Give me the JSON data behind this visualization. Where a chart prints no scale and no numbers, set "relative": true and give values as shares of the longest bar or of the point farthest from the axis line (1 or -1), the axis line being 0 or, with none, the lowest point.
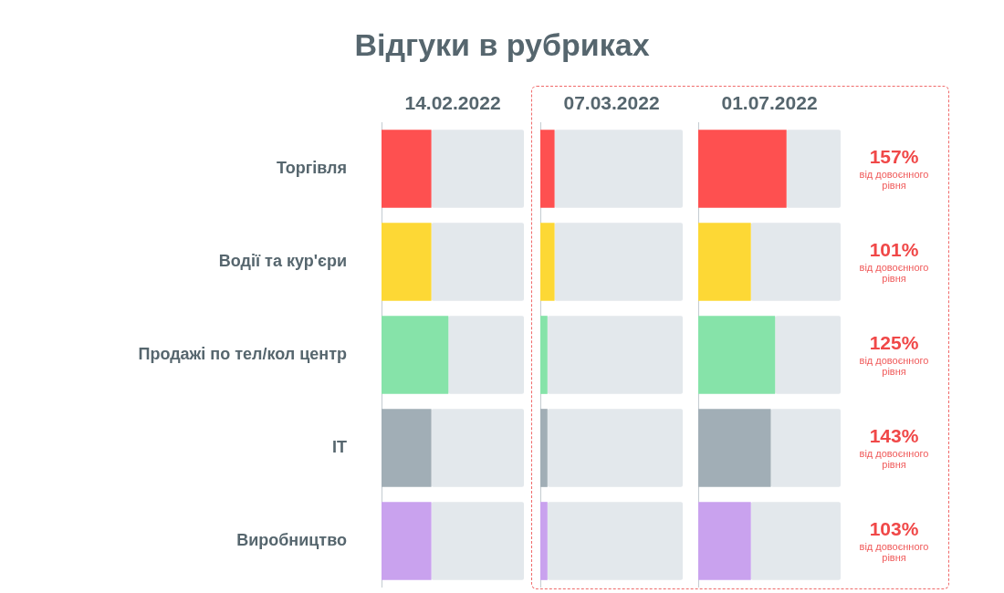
{
  "chart_data": [
    {
      "type": "bar",
      "orientation": "horizontal",
      "relative": true,
      "stacked": true,
      "tick_labels": "y",
      "title": "Відгуки в рубриках",
      "categories": [
        "Торгівля",
        "Водії та кур'єри",
        "Продажі по тел/кол центр",
        "IT",
        "Виробництво"
      ],
      "series": [
        {
          "name": "14.02.2022",
          "colors": [
            "#fe5050",
            "#fdd835",
            "#86e3a9",
            "#a1aeb6",
            "#c9a2ee"
          ],
          "values": [
            0.35,
            0.35,
            0.47,
            0.35,
            0.35
          ]
        },
        {
          "color": "#e3e8ec",
          "values": [
            0.65,
            0.65,
            0.53,
            0.65,
            0.65
          ]
        }
      ]
    },
    {
      "type": "bar",
      "orientation": "horizontal",
      "relative": true,
      "stacked": true,
      "tick_labels": false,
      "categories": [
        null,
        null,
        null,
        null,
        null
      ],
      "series": [
        {
          "name": "07.03.2022",
          "colors": [
            "#fe5050",
            "#fdd835",
            "#86e3a9",
            "#a1aeb6",
            "#c9a2ee"
          ],
          "values": [
            0.1,
            0.1,
            0.05,
            0.05,
            0.05
          ]
        },
        {
          "color": "#e3e8ec",
          "values": [
            0.9,
            0.9,
            0.95,
            0.95,
            0.95
          ]
        }
      ]
    },
    {
      "type": "bar",
      "orientation": "horizontal",
      "relative": true,
      "stacked": true,
      "tick_labels": false,
      "categories": [
        null,
        null,
        null,
        null,
        null
      ],
      "series": [
        {
          "name": "01.07.2022",
          "colors": [
            "#fe5050",
            "#fdd835",
            "#86e3a9",
            "#a1aeb6",
            "#c9a2ee"
          ],
          "values": [
            0.62,
            0.37,
            0.54,
            0.51,
            0.37
          ]
        },
        {
          "color": "#e3e8ec",
          "values": [
            0.38,
            0.63,
            0.46,
            0.49,
            0.63
          ]
        }
      ],
      "annotations": [
        "157%",
        "від довоєнного рівня",
        "101%",
        "від довоєнного рівня",
        "125%",
        "від довоєнного рівня",
        "143%",
        "від довоєнного рівня",
        "103%",
        "від довоєнного рівня"
      ]
    }
  ]
}
